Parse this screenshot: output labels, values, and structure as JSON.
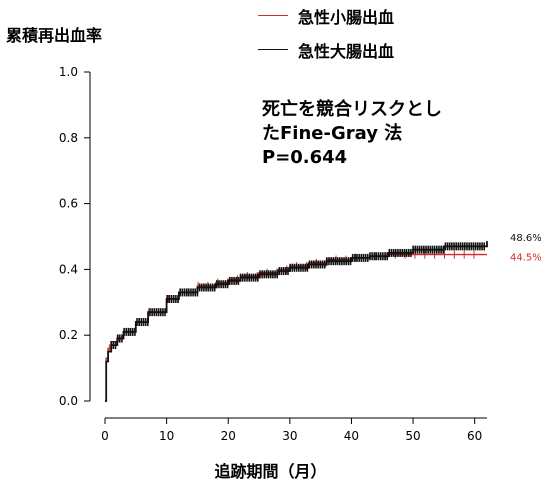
{
  "chart_data": {
    "type": "line",
    "ylabel": "累積再出血率",
    "xlabel": "追跡期間（月）",
    "xlim": [
      0,
      62
    ],
    "ylim": [
      0,
      1.0
    ],
    "x_ticks": [
      "0",
      "10",
      "20",
      "30",
      "40",
      "50",
      "60"
    ],
    "y_ticks": [
      "0.0",
      "0.2",
      "0.4",
      "0.6",
      "0.8",
      "1.0"
    ],
    "legend_position": "top-right",
    "grid": false,
    "annotation": {
      "line1": "死亡を競合リスクとし",
      "line2": "たFine-Gray 法",
      "line3": "P=0.644"
    },
    "series": [
      {
        "name": "急性小腸出血",
        "color": "#d42a2a",
        "end_label": "44.5%",
        "x": [
          0,
          0.2,
          0.5,
          1,
          2,
          3,
          5,
          7,
          10,
          12,
          15,
          18,
          20,
          22,
          25,
          28,
          30,
          33,
          36,
          40,
          43,
          46,
          50,
          55,
          62
        ],
        "y": [
          0.0,
          0.13,
          0.16,
          0.18,
          0.19,
          0.21,
          0.24,
          0.27,
          0.31,
          0.33,
          0.35,
          0.36,
          0.37,
          0.38,
          0.39,
          0.4,
          0.41,
          0.42,
          0.43,
          0.435,
          0.44,
          0.445,
          0.445,
          0.445,
          0.445
        ]
      },
      {
        "name": "急性大腸出血",
        "color": "#111111",
        "end_label": "48.6%",
        "x": [
          0,
          0.2,
          0.5,
          1,
          2,
          3,
          5,
          7,
          10,
          12,
          15,
          18,
          20,
          22,
          25,
          28,
          30,
          33,
          36,
          40,
          43,
          46,
          50,
          55,
          62
        ],
        "y": [
          0.0,
          0.12,
          0.15,
          0.17,
          0.19,
          0.21,
          0.24,
          0.27,
          0.31,
          0.33,
          0.345,
          0.355,
          0.365,
          0.375,
          0.385,
          0.395,
          0.405,
          0.415,
          0.425,
          0.435,
          0.44,
          0.45,
          0.46,
          0.47,
          0.486
        ]
      }
    ]
  }
}
